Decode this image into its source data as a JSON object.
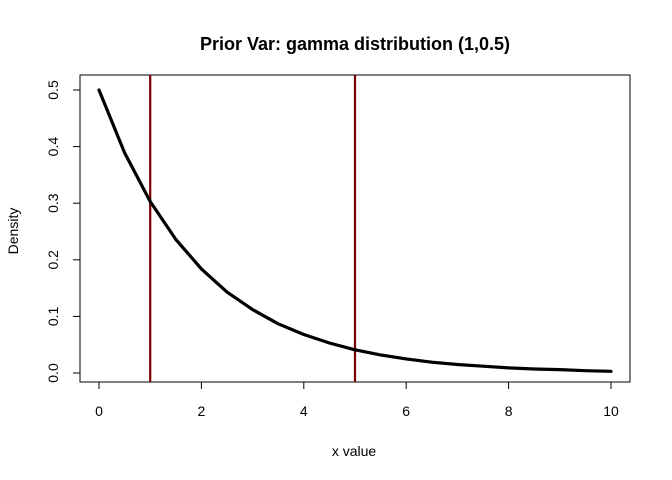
{
  "chart_data": {
    "type": "line",
    "title": "Prior Var: gamma distribution (1,0.5)",
    "xlabel": "x value",
    "ylabel": "Density",
    "xlim": [
      0,
      10
    ],
    "ylim": [
      0,
      0.5
    ],
    "xticks": [
      0,
      2,
      4,
      6,
      8,
      10
    ],
    "xtick_labels": [
      "0",
      "2",
      "4",
      "6",
      "8",
      "10"
    ],
    "yticks": [
      0.0,
      0.1,
      0.2,
      0.3,
      0.4,
      0.5
    ],
    "ytick_labels": [
      "0.0",
      "0.1",
      "0.2",
      "0.3",
      "0.4",
      "0.5"
    ],
    "grid": false,
    "series": [
      {
        "color": "#000000",
        "x": [
          0,
          0.5,
          1,
          1.5,
          2,
          2.5,
          3,
          3.5,
          4,
          4.5,
          5,
          5.5,
          6,
          6.5,
          7,
          7.5,
          8,
          8.5,
          9,
          9.5,
          10
        ],
        "y": [
          0.5,
          0.389,
          0.303,
          0.236,
          0.184,
          0.143,
          0.112,
          0.087,
          0.068,
          0.053,
          0.041,
          0.032,
          0.025,
          0.019,
          0.015,
          0.012,
          0.009,
          0.007,
          0.006,
          0.004,
          0.003
        ]
      }
    ],
    "vlines": [
      {
        "x": 1,
        "color": "#7a0000"
      },
      {
        "x": 5,
        "color": "#7a0000"
      }
    ]
  }
}
